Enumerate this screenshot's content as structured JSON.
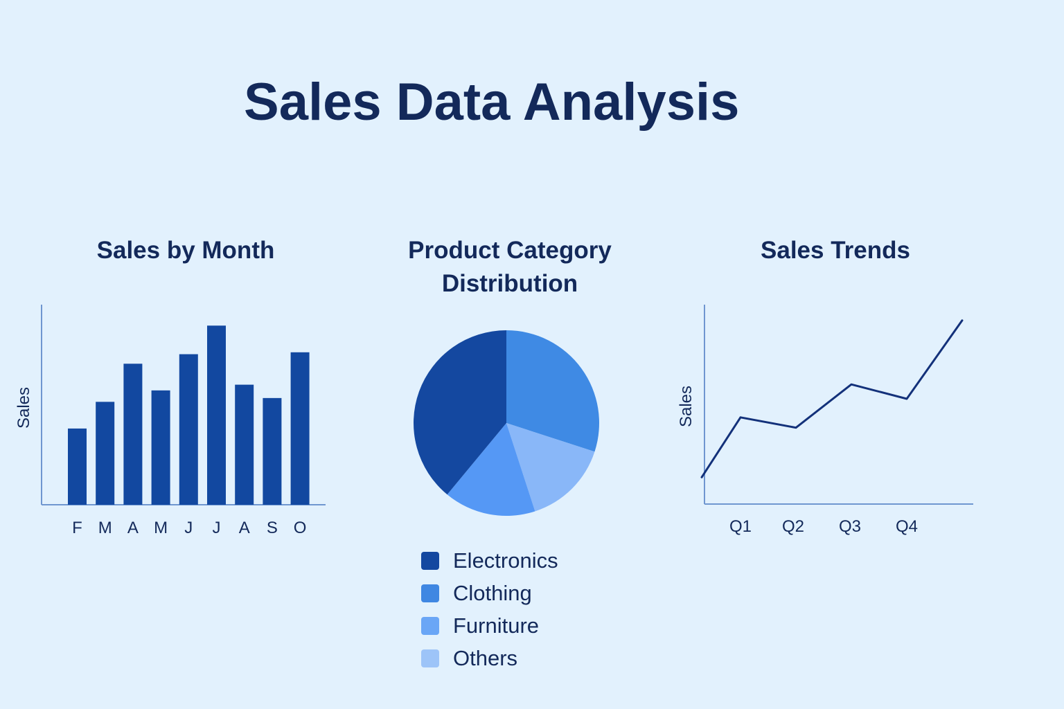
{
  "title": "Sales Data Analysis",
  "colors": {
    "background": "#e2f1fd",
    "text": "#13295a",
    "axis": "#6f96d0",
    "bar": "#1248a0",
    "line": "#13317a"
  },
  "chart_data": [
    {
      "type": "bar",
      "title": "Sales by Month",
      "xlabel": "",
      "ylabel": "Sales",
      "categories": [
        "F",
        "M",
        "A",
        "M",
        "J",
        "J",
        "A",
        "S",
        "O"
      ],
      "values": [
        40,
        54,
        74,
        60,
        79,
        94,
        63,
        56,
        80
      ],
      "ylim": [
        0,
        105
      ]
    },
    {
      "type": "pie",
      "title": "Product Category Distribution",
      "labels": [
        "Electronics",
        "Clothing",
        "Furniture",
        "Others"
      ],
      "values": [
        39,
        30,
        16,
        15
      ],
      "colors": [
        "#1448a0",
        "#3f8ae4",
        "#5598f5",
        "#89b7f8"
      ],
      "legend_colors": [
        "#1448a0",
        "#3f87e2",
        "#6aa6f6",
        "#9dc4f8"
      ],
      "legend_position": "bottom"
    },
    {
      "type": "line",
      "title": "Sales Trends",
      "xlabel": "",
      "ylabel": "Sales",
      "x": [
        0.3,
        1,
        2,
        3,
        4,
        5
      ],
      "y": [
        13,
        42,
        37,
        58,
        51,
        89
      ],
      "xticks": [
        "Q1",
        "Q2",
        "Q3",
        "Q4"
      ],
      "ylim": [
        0,
        100
      ]
    }
  ]
}
